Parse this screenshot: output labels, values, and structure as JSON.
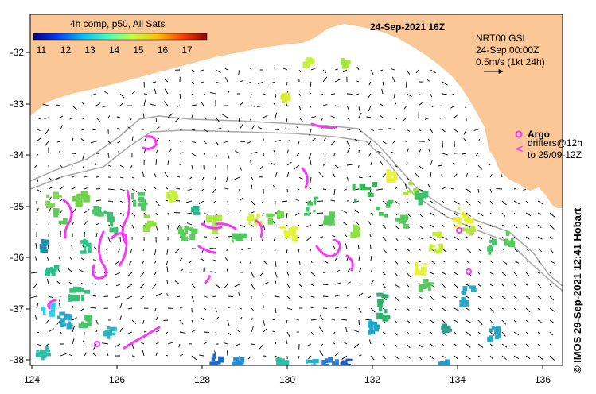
{
  "legend": {
    "title": "4h comp, p50, All Sats",
    "ticks": [
      "11",
      "12",
      "13",
      "14",
      "15",
      "16",
      "17"
    ],
    "colors": [
      "#00008f",
      "#0040ff",
      "#00bfff",
      "#40ffbf",
      "#bfff40",
      "#ffbf00",
      "#ff4000",
      "#8f0000"
    ]
  },
  "header": {
    "date": "24-Sep-2021 16Z"
  },
  "reference": {
    "line1": "NRT00 GSL",
    "line2": "24-Sep 00:00Z",
    "line3": "0.5m/s (1kt 24h)"
  },
  "argo": {
    "title": "Argo",
    "line1": "drifters@12h",
    "line2": "to 25/09-12Z",
    "color": "#ff33ff"
  },
  "credit": "© IMOS 29-Sep-2021 12:41 Hobart",
  "axes": {
    "x_ticks": [
      "124",
      "126",
      "128",
      "130",
      "132",
      "134",
      "136"
    ],
    "y_ticks": [
      "-32",
      "-33",
      "-34",
      "-35",
      "-36",
      "-37",
      "-38"
    ]
  },
  "colors": {
    "land": "#fcc796",
    "ocean": "#ffffff",
    "isobath": "#a8a8a8",
    "drifter": "#ff33ff"
  }
}
